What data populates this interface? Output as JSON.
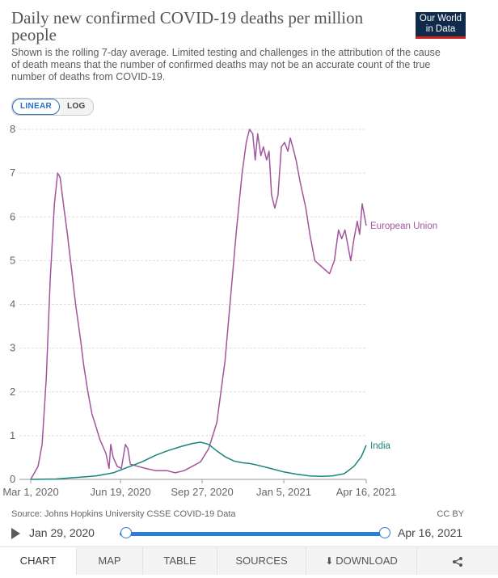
{
  "header": {
    "title": "Daily new confirmed COVID-19 deaths per million people",
    "subtitle": "Shown is the rolling 7-day average. Limited testing and challenges in the attribution of the cause of death means that the number of confirmed deaths may not be an accurate count of the true number of deaths from COVID-19.",
    "logo_line1": "Our World",
    "logo_line2": "in Data"
  },
  "scale_toggle": {
    "linear": "LINEAR",
    "log": "LOG",
    "selected": "LINEAR"
  },
  "footer": {
    "source": "Source: Johns Hopkins University CSSE COVID-19 Data",
    "license": "CC BY"
  },
  "timeline": {
    "start_label": "Jan 29, 2020",
    "end_label": "Apr 16, 2021"
  },
  "tabs": [
    {
      "label": "CHART"
    },
    {
      "label": "MAP"
    },
    {
      "label": "TABLE"
    },
    {
      "label": "SOURCES"
    },
    {
      "label": "DOWNLOAD"
    }
  ],
  "chart_data": {
    "type": "line",
    "x_start": "2020-03-01",
    "x_end": "2021-04-16",
    "x_ticks": [
      {
        "date": "2020-03-01",
        "label": "Mar 1, 2020"
      },
      {
        "date": "2020-06-19",
        "label": "Jun 19, 2020"
      },
      {
        "date": "2020-09-27",
        "label": "Sep 27, 2020"
      },
      {
        "date": "2021-01-05",
        "label": "Jan 5, 2021"
      },
      {
        "date": "2021-04-16",
        "label": "Apr 16, 2021"
      }
    ],
    "y_ticks": [
      0,
      1,
      2,
      3,
      4,
      5,
      6,
      7,
      8
    ],
    "ylim": [
      0,
      8
    ],
    "grid": true,
    "series": [
      {
        "name": "European Union",
        "color": "#a2559c",
        "points": [
          [
            "2020-03-01",
            0
          ],
          [
            "2020-03-10",
            0.3
          ],
          [
            "2020-03-15",
            0.8
          ],
          [
            "2020-03-20",
            2.3
          ],
          [
            "2020-03-25",
            4.6
          ],
          [
            "2020-03-30",
            6.3
          ],
          [
            "2020-04-03",
            7.0
          ],
          [
            "2020-04-06",
            6.9
          ],
          [
            "2020-04-10",
            6.3
          ],
          [
            "2020-04-15",
            5.6
          ],
          [
            "2020-04-20",
            4.8
          ],
          [
            "2020-04-25",
            4.0
          ],
          [
            "2020-05-01",
            3.2
          ],
          [
            "2020-05-05",
            2.6
          ],
          [
            "2020-05-10",
            2.0
          ],
          [
            "2020-05-15",
            1.5
          ],
          [
            "2020-05-20",
            1.2
          ],
          [
            "2020-05-25",
            0.9
          ],
          [
            "2020-06-01",
            0.6
          ],
          [
            "2020-06-05",
            0.25
          ],
          [
            "2020-06-07",
            0.8
          ],
          [
            "2020-06-10",
            0.5
          ],
          [
            "2020-06-15",
            0.3
          ],
          [
            "2020-06-20",
            0.25
          ],
          [
            "2020-06-25",
            0.8
          ],
          [
            "2020-06-28",
            0.7
          ],
          [
            "2020-07-01",
            0.35
          ],
          [
            "2020-07-10",
            0.3
          ],
          [
            "2020-07-20",
            0.25
          ],
          [
            "2020-08-01",
            0.2
          ],
          [
            "2020-08-15",
            0.2
          ],
          [
            "2020-08-25",
            0.15
          ],
          [
            "2020-09-05",
            0.2
          ],
          [
            "2020-09-15",
            0.3
          ],
          [
            "2020-09-25",
            0.4
          ],
          [
            "2020-10-05",
            0.7
          ],
          [
            "2020-10-15",
            1.3
          ],
          [
            "2020-10-25",
            2.7
          ],
          [
            "2020-11-01",
            4.2
          ],
          [
            "2020-11-08",
            5.7
          ],
          [
            "2020-11-15",
            7.0
          ],
          [
            "2020-11-20",
            7.7
          ],
          [
            "2020-11-24",
            8.0
          ],
          [
            "2020-11-28",
            7.9
          ],
          [
            "2020-12-01",
            7.3
          ],
          [
            "2020-12-04",
            7.9
          ],
          [
            "2020-12-08",
            7.4
          ],
          [
            "2020-12-11",
            7.6
          ],
          [
            "2020-12-15",
            7.3
          ],
          [
            "2020-12-18",
            7.5
          ],
          [
            "2020-12-21",
            6.5
          ],
          [
            "2020-12-25",
            6.2
          ],
          [
            "2020-12-29",
            6.5
          ],
          [
            "2021-01-02",
            7.6
          ],
          [
            "2021-01-06",
            7.7
          ],
          [
            "2021-01-10",
            7.5
          ],
          [
            "2021-01-13",
            7.8
          ],
          [
            "2021-01-16",
            7.6
          ],
          [
            "2021-01-20",
            7.3
          ],
          [
            "2021-01-25",
            6.8
          ],
          [
            "2021-02-01",
            6.2
          ],
          [
            "2021-02-06",
            5.6
          ],
          [
            "2021-02-12",
            5.0
          ],
          [
            "2021-02-18",
            4.9
          ],
          [
            "2021-02-24",
            4.8
          ],
          [
            "2021-03-02",
            4.7
          ],
          [
            "2021-03-08",
            5.0
          ],
          [
            "2021-03-13",
            5.7
          ],
          [
            "2021-03-17",
            5.5
          ],
          [
            "2021-03-21",
            5.7
          ],
          [
            "2021-03-25",
            5.3
          ],
          [
            "2021-03-28",
            5.0
          ],
          [
            "2021-04-01",
            5.5
          ],
          [
            "2021-04-05",
            5.9
          ],
          [
            "2021-04-08",
            5.6
          ],
          [
            "2021-04-11",
            6.3
          ],
          [
            "2021-04-14",
            6.0
          ],
          [
            "2021-04-16",
            5.8
          ]
        ]
      },
      {
        "name": "India",
        "color": "#18857c",
        "points": [
          [
            "2020-03-01",
            0
          ],
          [
            "2020-04-01",
            0.01
          ],
          [
            "2020-05-01",
            0.05
          ],
          [
            "2020-05-20",
            0.08
          ],
          [
            "2020-06-10",
            0.15
          ],
          [
            "2020-06-20",
            0.22
          ],
          [
            "2020-07-01",
            0.3
          ],
          [
            "2020-07-15",
            0.4
          ],
          [
            "2020-08-01",
            0.55
          ],
          [
            "2020-08-15",
            0.65
          ],
          [
            "2020-09-01",
            0.75
          ],
          [
            "2020-09-15",
            0.82
          ],
          [
            "2020-09-25",
            0.85
          ],
          [
            "2020-10-05",
            0.8
          ],
          [
            "2020-10-15",
            0.65
          ],
          [
            "2020-10-25",
            0.52
          ],
          [
            "2020-11-05",
            0.42
          ],
          [
            "2020-11-15",
            0.38
          ],
          [
            "2020-11-25",
            0.36
          ],
          [
            "2020-12-05",
            0.32
          ],
          [
            "2020-12-20",
            0.25
          ],
          [
            "2021-01-05",
            0.17
          ],
          [
            "2021-01-20",
            0.12
          ],
          [
            "2021-02-05",
            0.08
          ],
          [
            "2021-02-20",
            0.07
          ],
          [
            "2021-03-05",
            0.08
          ],
          [
            "2021-03-20",
            0.13
          ],
          [
            "2021-04-01",
            0.3
          ],
          [
            "2021-04-10",
            0.52
          ],
          [
            "2021-04-16",
            0.78
          ]
        ]
      }
    ]
  }
}
